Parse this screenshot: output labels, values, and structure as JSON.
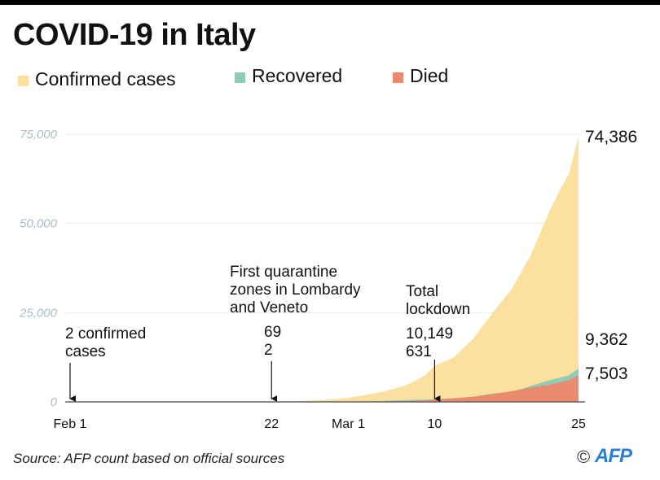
{
  "title": "COVID-19 in Italy",
  "legend": [
    {
      "label": "Confirmed cases",
      "color": "#fbe0a0"
    },
    {
      "label": "Recovered",
      "color": "#8ecbb9"
    },
    {
      "label": "Died",
      "color": "#ea8a6e"
    }
  ],
  "source": "Source: AFP count based on official sources",
  "credit": {
    "copyright": "©",
    "logo": "AFP"
  },
  "chart_data": {
    "type": "area",
    "title": "COVID-19 in Italy",
    "xlabel": "",
    "ylabel": "",
    "ylim": [
      0,
      75000
    ],
    "grid": true,
    "stacked": false,
    "legend_position": "top",
    "yticks": [
      {
        "value": 0,
        "label": "0"
      },
      {
        "value": 25000,
        "label": "25,000"
      },
      {
        "value": 50000,
        "label": "50,000"
      },
      {
        "value": 75000,
        "label": "75,000"
      }
    ],
    "xticks": [
      {
        "day": 0,
        "label": "Feb 1"
      },
      {
        "day": 21,
        "label": "22"
      },
      {
        "day": 29,
        "label": "Mar 1"
      },
      {
        "day": 38,
        "label": "10"
      },
      {
        "day": 53,
        "label": "25"
      }
    ],
    "x_day_range": [
      0,
      53
    ],
    "series": [
      {
        "name": "Confirmed cases",
        "color": "#fbe0a0",
        "points": [
          [
            0,
            2
          ],
          [
            21,
            20
          ],
          [
            22,
            69
          ],
          [
            24,
            230
          ],
          [
            26,
            450
          ],
          [
            28,
            890
          ],
          [
            29,
            1130
          ],
          [
            31,
            2000
          ],
          [
            33,
            3100
          ],
          [
            35,
            4600
          ],
          [
            37,
            7400
          ],
          [
            38,
            10149
          ],
          [
            40,
            12460
          ],
          [
            42,
            17660
          ],
          [
            44,
            24750
          ],
          [
            46,
            31500
          ],
          [
            48,
            41000
          ],
          [
            50,
            53600
          ],
          [
            51,
            59100
          ],
          [
            52,
            63900
          ],
          [
            53,
            74386
          ]
        ]
      },
      {
        "name": "Recovered",
        "color": "#8ecbb9",
        "points": [
          [
            0,
            0
          ],
          [
            21,
            0
          ],
          [
            22,
            2
          ],
          [
            26,
            45
          ],
          [
            29,
            100
          ],
          [
            33,
            280
          ],
          [
            35,
            520
          ],
          [
            37,
            620
          ],
          [
            38,
            724
          ],
          [
            40,
            1045
          ],
          [
            42,
            1440
          ],
          [
            44,
            2335
          ],
          [
            46,
            2750
          ],
          [
            48,
            4440
          ],
          [
            50,
            6070
          ],
          [
            52,
            7430
          ],
          [
            53,
            9362
          ]
        ]
      },
      {
        "name": "Died",
        "color": "#ea8a6e",
        "points": [
          [
            0,
            0
          ],
          [
            21,
            0
          ],
          [
            22,
            2
          ],
          [
            26,
            12
          ],
          [
            29,
            29
          ],
          [
            33,
            107
          ],
          [
            35,
            197
          ],
          [
            37,
            463
          ],
          [
            38,
            631
          ],
          [
            40,
            1016
          ],
          [
            42,
            1441
          ],
          [
            44,
            2158
          ],
          [
            46,
            2978
          ],
          [
            48,
            4032
          ],
          [
            50,
            4825
          ],
          [
            52,
            6077
          ],
          [
            53,
            7503
          ]
        ]
      }
    ],
    "end_labels": [
      {
        "series": "Confirmed cases",
        "value": 74386,
        "label": "74,386"
      },
      {
        "series": "Recovered",
        "value": 9362,
        "label": "9,362"
      },
      {
        "series": "Died",
        "value": 7503,
        "label": "7,503"
      }
    ],
    "annotations": [
      {
        "day": 0,
        "lines": [
          "2 confirmed",
          "cases"
        ]
      },
      {
        "day": 21,
        "lines": [
          "First quarantine",
          "zones in Lombardy",
          "and Veneto"
        ],
        "values": [
          "69",
          "2"
        ]
      },
      {
        "day": 38,
        "lines": [
          "Total",
          "lockdown"
        ],
        "values": [
          "10,149",
          "631"
        ]
      }
    ]
  }
}
